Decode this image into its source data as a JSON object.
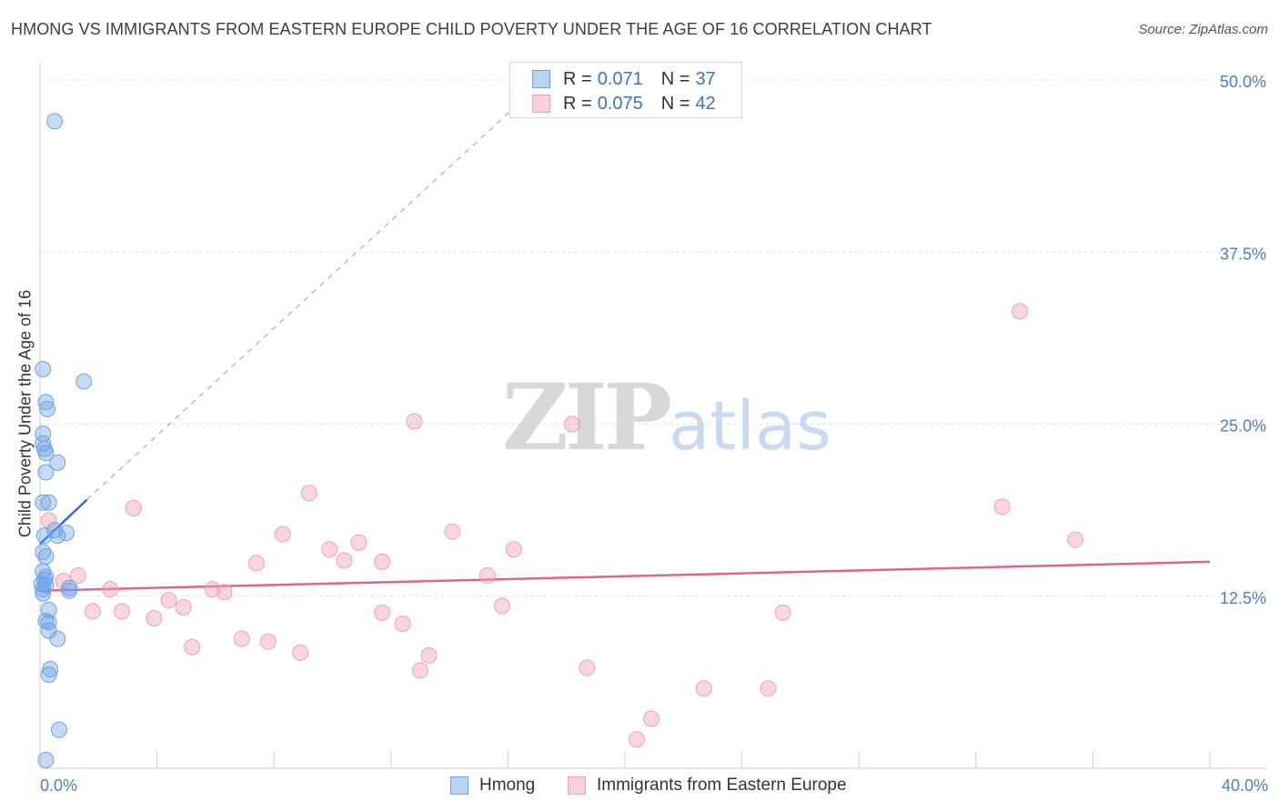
{
  "header": {
    "title": "HMONG VS IMMIGRANTS FROM EASTERN EUROPE CHILD POVERTY UNDER THE AGE OF 16 CORRELATION CHART",
    "source": "Source: ZipAtlas.com"
  },
  "watermark": {
    "zip": "ZIP",
    "atlas": "atlas"
  },
  "legend": {
    "rows": [
      {
        "r_label": "R =",
        "r_value": "0.071",
        "n_label": "N =",
        "n_value": "37"
      },
      {
        "r_label": "R =",
        "r_value": "0.075",
        "n_label": "N =",
        "n_value": "42"
      }
    ]
  },
  "bottom_legend": {
    "hmong": "Hmong",
    "immigrants": "Immigrants from Eastern Europe"
  },
  "chart_data": {
    "type": "scatter",
    "title": "HMONG VS IMMIGRANTS FROM EASTERN EUROPE CHILD POVERTY UNDER THE AGE OF 16 CORRELATION CHART",
    "xlabel": "",
    "ylabel": "Child Poverty Under the Age of 16",
    "xlim": [
      0,
      40
    ],
    "ylim": [
      0,
      50
    ],
    "x_ticks": [
      "0.0%",
      "40.0%"
    ],
    "y_ticks": [
      {
        "value": 12.5,
        "label": "12.5%"
      },
      {
        "value": 25.0,
        "label": "25.0%"
      },
      {
        "value": 37.5,
        "label": "37.5%"
      },
      {
        "value": 50.0,
        "label": "50.0%"
      }
    ],
    "colors": {
      "hmong": "#6fa3e6",
      "hmong_line": "#2f6fd0",
      "immig": "#f2a1bb",
      "immig_line": "#e4628d"
    },
    "series": [
      {
        "name": "Hmong",
        "r": 0.071,
        "n": 37,
        "trend": {
          "x0": 0.0,
          "y0": 16.3,
          "x1": 1.6,
          "y1": 19.5,
          "dashed_to_x": 17.5,
          "dashed_to_y": 50.5
        },
        "points": [
          [
            0.5,
            47.0
          ],
          [
            0.1,
            29.0
          ],
          [
            1.5,
            28.1
          ],
          [
            0.2,
            26.6
          ],
          [
            0.25,
            26.1
          ],
          [
            0.1,
            24.3
          ],
          [
            0.1,
            23.6
          ],
          [
            0.15,
            23.2
          ],
          [
            0.2,
            22.9
          ],
          [
            0.6,
            22.2
          ],
          [
            0.2,
            21.5
          ],
          [
            0.3,
            19.3
          ],
          [
            0.1,
            19.3
          ],
          [
            0.5,
            17.3
          ],
          [
            0.9,
            17.1
          ],
          [
            0.6,
            16.9
          ],
          [
            0.1,
            15.7
          ],
          [
            0.2,
            15.4
          ],
          [
            0.1,
            14.3
          ],
          [
            0.15,
            13.7
          ],
          [
            0.2,
            13.9
          ],
          [
            0.05,
            13.4
          ],
          [
            0.2,
            13.3
          ],
          [
            1.0,
            13.1
          ],
          [
            1.0,
            12.9
          ],
          [
            0.1,
            12.7
          ],
          [
            0.3,
            11.5
          ],
          [
            0.2,
            10.7
          ],
          [
            0.3,
            10.6
          ],
          [
            0.3,
            10.0
          ],
          [
            0.6,
            9.4
          ],
          [
            0.35,
            7.2
          ],
          [
            0.3,
            6.8
          ],
          [
            0.65,
            2.8
          ],
          [
            0.2,
            0.6
          ],
          [
            0.1,
            13.0
          ],
          [
            0.15,
            16.9
          ]
        ]
      },
      {
        "name": "Immigrants from Eastern Europe",
        "r": 0.075,
        "n": 42,
        "trend": {
          "x0": 0.0,
          "y0": 12.9,
          "x1": 40.0,
          "y1": 15.0
        },
        "points": [
          [
            33.5,
            33.2
          ],
          [
            12.8,
            25.2
          ],
          [
            18.2,
            25.0
          ],
          [
            9.2,
            20.0
          ],
          [
            3.2,
            18.9
          ],
          [
            32.9,
            19.0
          ],
          [
            0.3,
            18.0
          ],
          [
            14.1,
            17.2
          ],
          [
            8.3,
            17.0
          ],
          [
            35.4,
            16.6
          ],
          [
            10.9,
            16.4
          ],
          [
            9.9,
            15.9
          ],
          [
            16.2,
            15.9
          ],
          [
            10.4,
            15.1
          ],
          [
            11.7,
            15.0
          ],
          [
            7.4,
            14.9
          ],
          [
            1.3,
            14.0
          ],
          [
            15.3,
            14.0
          ],
          [
            0.8,
            13.6
          ],
          [
            2.4,
            13.0
          ],
          [
            5.9,
            13.0
          ],
          [
            6.3,
            12.8
          ],
          [
            4.4,
            12.2
          ],
          [
            4.9,
            11.7
          ],
          [
            15.8,
            11.8
          ],
          [
            1.8,
            11.4
          ],
          [
            2.8,
            11.4
          ],
          [
            11.7,
            11.3
          ],
          [
            25.4,
            11.3
          ],
          [
            3.9,
            10.9
          ],
          [
            12.4,
            10.5
          ],
          [
            6.9,
            9.4
          ],
          [
            5.2,
            8.8
          ],
          [
            7.8,
            9.2
          ],
          [
            8.9,
            8.4
          ],
          [
            13.3,
            8.2
          ],
          [
            13.0,
            7.1
          ],
          [
            18.7,
            7.3
          ],
          [
            22.7,
            5.8
          ],
          [
            24.9,
            5.8
          ],
          [
            20.9,
            3.6
          ],
          [
            20.4,
            2.1
          ]
        ]
      }
    ]
  }
}
